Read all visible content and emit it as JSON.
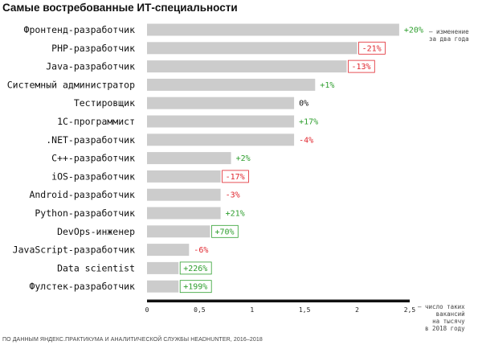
{
  "title": "Самые востребованные ИТ-специальности",
  "source": "ПО ДАННЫМ ЯНДЕКС.ПРАКТИКУМА И АНАЛИТИЧЕСКОЙ СЛУЖБЫ HEADHUNTER, 2016–2018",
  "change_note": "— изменение\nза два года",
  "axis_note": "— число таких\nвакансий\nна тысячу\nв 2018 году",
  "colors": {
    "bar": "#cccccc",
    "positive": "#2e9e2e",
    "negative": "#e0262e",
    "neutral": "#111111",
    "axis": "#111111"
  },
  "chart_data": {
    "type": "bar",
    "orientation": "horizontal",
    "title": "Самые востребованные ИТ-специальности",
    "xlabel": "— число таких вакансий на тысячу в 2018 году",
    "xlim": [
      0,
      2.5
    ],
    "ticks": [
      {
        "value": 0,
        "label": "0"
      },
      {
        "value": 0.5,
        "label": "0,5"
      },
      {
        "value": 1,
        "label": "1"
      },
      {
        "value": 1.5,
        "label": "1,5"
      },
      {
        "value": 2,
        "label": "2"
      },
      {
        "value": 2.5,
        "label": "2,5"
      }
    ],
    "categories": [
      "Фронтенд-разработчик",
      "PHP-разработчик",
      "Java-разработчик",
      "Системный администратор",
      "Тестировщик",
      "1С-программист",
      ".NET-разработчик",
      "C++-разработчик",
      "iOS-разработчик",
      "Android-разработчик",
      "Python-разработчик",
      "DevOps-инженер",
      "JavaScript-разработчик",
      "Data scientist",
      "Фулстек-разработчик"
    ],
    "values": [
      2.4,
      2.0,
      1.9,
      1.6,
      1.4,
      1.4,
      1.4,
      0.8,
      0.7,
      0.7,
      0.7,
      0.6,
      0.4,
      0.3,
      0.3
    ],
    "changes": [
      "+20%",
      "-21%",
      "-13%",
      "+1%",
      "0%",
      "+17%",
      "-4%",
      "+2%",
      "-17%",
      "-3%",
      "+21%",
      "+70%",
      "-6%",
      "+226%",
      "+199%"
    ],
    "change_sign": [
      "positive",
      "negative",
      "negative",
      "positive",
      "neutral",
      "positive",
      "negative",
      "positive",
      "negative",
      "negative",
      "positive",
      "positive",
      "negative",
      "positive",
      "positive"
    ],
    "change_boxed": [
      false,
      true,
      true,
      false,
      false,
      false,
      false,
      false,
      true,
      false,
      false,
      true,
      false,
      true,
      true
    ]
  }
}
